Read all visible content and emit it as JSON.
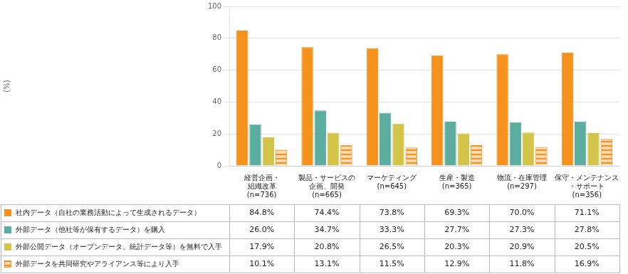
{
  "chart_data": {
    "type": "bar",
    "categories": [
      "経営企画・\n組織改革\n(n=736)",
      "製品・サービスの\n企画、開発\n(n=665)",
      "マーケティング\n(n=645)",
      "生産・製造\n(n=365)",
      "物流・在庫管理\n(n=297)",
      "保守・メンテナンス\n・サポート\n(n=356)"
    ],
    "series": [
      {
        "name": "社内データ（自社の業務活動によって生成されるデータ）",
        "color": "#F5921E",
        "values": [
          84.8,
          74.4,
          73.8,
          69.3,
          70.0,
          71.1
        ],
        "value_labels": [
          "84.8%",
          "74.4%",
          "73.8%",
          "69.3%",
          "70.0%",
          "71.1%"
        ]
      },
      {
        "name": "外部データ（他社等が保有するデータ）を購入",
        "color": "#5BADA0",
        "values": [
          26.0,
          34.7,
          33.3,
          27.7,
          27.3,
          27.8
        ],
        "value_labels": [
          "26.0%",
          "34.7%",
          "33.3%",
          "27.7%",
          "27.3%",
          "27.8%"
        ]
      },
      {
        "name": "外部公開データ（オープンデータ、統計データ等）を無料で入手",
        "color": "#D4C44A",
        "values": [
          17.9,
          20.8,
          26.5,
          20.3,
          20.9,
          20.5
        ],
        "value_labels": [
          "17.9%",
          "20.8%",
          "26.5%",
          "20.3%",
          "20.9%",
          "20.5%"
        ]
      },
      {
        "name": "外部データを共同研究やアライアンス等により入手",
        "color": "#F5921E",
        "values": [
          10.1,
          13.1,
          11.5,
          12.9,
          11.8,
          16.9
        ],
        "value_labels": [
          "10.1%",
          "13.1%",
          "11.5%",
          "12.9%",
          "11.8%",
          "16.9%"
        ]
      }
    ],
    "ylabel": "(%)",
    "ylim": [
      0,
      100
    ],
    "yticks": [
      0,
      20,
      40,
      60,
      80,
      100
    ],
    "grid": true
  }
}
